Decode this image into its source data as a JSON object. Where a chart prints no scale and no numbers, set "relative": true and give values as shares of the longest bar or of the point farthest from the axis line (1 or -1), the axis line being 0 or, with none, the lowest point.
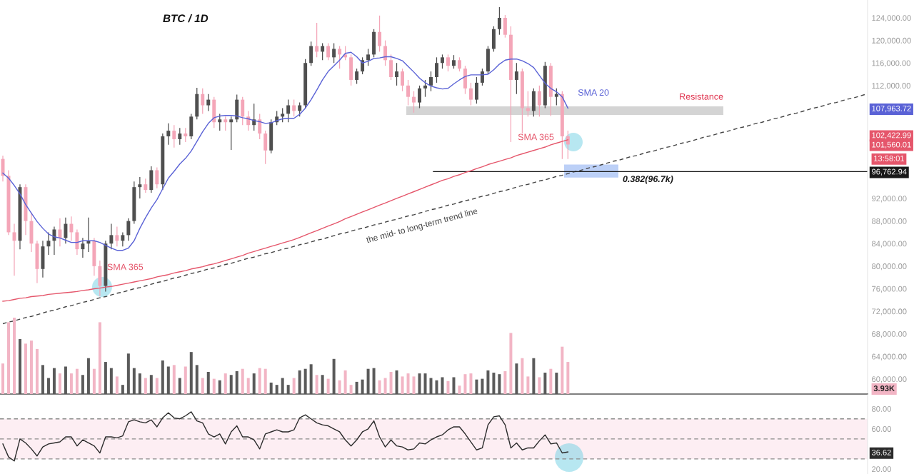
{
  "chart_data": [
    {
      "type": "candlestick",
      "title": "BTC / 1D",
      "categories": [
        null,
        null,
        null,
        null,
        null,
        null,
        null,
        null,
        null,
        null,
        null,
        null,
        null,
        null,
        null,
        null,
        null,
        null,
        null,
        null,
        null,
        null,
        null,
        null,
        null,
        null,
        null,
        null,
        null,
        null,
        null,
        null,
        null,
        null,
        null,
        null,
        null,
        null,
        null,
        null,
        null,
        null,
        null,
        null,
        null,
        null,
        null,
        null,
        null,
        null,
        null,
        null,
        null,
        null,
        null,
        null,
        null,
        null,
        null,
        null,
        null,
        null,
        null,
        null,
        null,
        null,
        null,
        null,
        null,
        null,
        null,
        null,
        null,
        null,
        null,
        null,
        null,
        null,
        null,
        null,
        null,
        null,
        null,
        null,
        null,
        null,
        null,
        null,
        null,
        null,
        null,
        null,
        null,
        null,
        null,
        null,
        null,
        null,
        null,
        null,
        null,
        null,
        null,
        null,
        null,
        null,
        null,
        null,
        null,
        null,
        null,
        null,
        null,
        null,
        null,
        null,
        null,
        null,
        null,
        null,
        null,
        null,
        null,
        null,
        null,
        null,
        null,
        null,
        null,
        null,
        null,
        null,
        null,
        null,
        null,
        null,
        null,
        null,
        null,
        null,
        null,
        null,
        null,
        null,
        null,
        null,
        null,
        null,
        null,
        null,
        null,
        null
      ],
      "ohlc": [
        [
          99000,
          99600,
          95000,
          96000
        ],
        [
          96000,
          97000,
          85500,
          86000
        ],
        [
          86000,
          87500,
          78300,
          84500
        ],
        [
          84500,
          94500,
          83000,
          94000
        ],
        [
          94000,
          94500,
          85500,
          88000
        ],
        [
          88000,
          89500,
          82500,
          84000
        ],
        [
          84000,
          84500,
          77000,
          79500
        ],
        [
          79500,
          84500,
          78000,
          83500
        ],
        [
          83500,
          86000,
          82000,
          84500
        ],
        [
          84500,
          87000,
          82000,
          86500
        ],
        [
          86500,
          88500,
          83500,
          85000
        ],
        [
          85000,
          88600,
          84000,
          87500
        ],
        [
          87500,
          88800,
          84500,
          86000
        ],
        [
          86000,
          86500,
          82000,
          83000
        ],
        [
          83000,
          85000,
          81500,
          84000
        ],
        [
          84000,
          88600,
          82500,
          84500
        ],
        [
          84500,
          85000,
          78300,
          80000
        ],
        [
          80000,
          81000,
          74700,
          76500
        ],
        [
          76500,
          84500,
          75500,
          84000
        ],
        [
          84000,
          87500,
          83000,
          85500
        ],
        [
          85500,
          87000,
          83500,
          84500
        ],
        [
          84500,
          86000,
          83500,
          85500
        ],
        [
          85500,
          88500,
          84500,
          88000
        ],
        [
          88000,
          95000,
          87500,
          94000
        ],
        [
          94000,
          95800,
          92000,
          94500
        ],
        [
          94500,
          95500,
          93000,
          93500
        ],
        [
          93500,
          97700,
          93000,
          97000
        ],
        [
          97000,
          97500,
          93800,
          94500
        ],
        [
          94500,
          103500,
          93500,
          103000
        ],
        [
          103000,
          105300,
          101500,
          104000
        ],
        [
          104000,
          105000,
          101000,
          102500
        ],
        [
          102500,
          104500,
          101500,
          103500
        ],
        [
          103500,
          104500,
          102000,
          103000
        ],
        [
          103000,
          107000,
          102500,
          106500
        ],
        [
          106500,
          111600,
          106000,
          110500
        ],
        [
          110500,
          111500,
          107000,
          108500
        ],
        [
          108500,
          110500,
          107500,
          109500
        ],
        [
          109500,
          110000,
          104500,
          105500
        ],
        [
          105500,
          107000,
          104000,
          106000
        ],
        [
          106000,
          106500,
          104000,
          105500
        ],
        [
          105500,
          106500,
          100600,
          106000
        ],
        [
          106000,
          110400,
          105500,
          109500
        ],
        [
          109500,
          110000,
          105000,
          106500
        ],
        [
          106500,
          107500,
          104000,
          105000
        ],
        [
          105000,
          108800,
          104000,
          106000
        ],
        [
          106000,
          107000,
          102500,
          103500
        ],
        [
          103500,
          104000,
          98100,
          100500
        ],
        [
          100500,
          106000,
          100000,
          105500
        ],
        [
          105500,
          107500,
          105000,
          106500
        ],
        [
          106500,
          108000,
          105500,
          107000
        ],
        [
          107000,
          109500,
          105500,
          108500
        ],
        [
          108500,
          109500,
          106500,
          107500
        ],
        [
          107500,
          109000,
          106500,
          108500
        ],
        [
          108500,
          116700,
          108000,
          116000
        ],
        [
          116000,
          119800,
          115500,
          119000
        ],
        [
          119000,
          123100,
          117000,
          118000
        ],
        [
          118000,
          119500,
          116500,
          119000
        ],
        [
          119000,
          119500,
          116500,
          117000
        ],
        [
          117000,
          119500,
          116000,
          118500
        ],
        [
          118500,
          119000,
          115000,
          117500
        ],
        [
          117500,
          119000,
          116500,
          117000
        ],
        [
          117000,
          117500,
          112000,
          113000
        ],
        [
          113000,
          115000,
          112300,
          114500
        ],
        [
          114500,
          117000,
          114000,
          116500
        ],
        [
          116500,
          118500,
          115500,
          117500
        ],
        [
          117500,
          122000,
          117000,
          121500
        ],
        [
          121500,
          124400,
          118000,
          119000
        ],
        [
          119000,
          120000,
          115500,
          116500
        ],
        [
          116500,
          117500,
          113000,
          113500
        ],
        [
          113500,
          116000,
          112000,
          114500
        ],
        [
          114500,
          115000,
          111000,
          112000
        ],
        [
          112000,
          113000,
          108500,
          110000
        ],
        [
          110000,
          111000,
          107200,
          109000
        ],
        [
          109000,
          112000,
          108000,
          111500
        ],
        [
          111500,
          113000,
          110000,
          112000
        ],
        [
          112000,
          114500,
          111000,
          113500
        ],
        [
          113500,
          117000,
          112500,
          116000
        ],
        [
          116000,
          117500,
          115000,
          117000
        ],
        [
          117000,
          117500,
          114500,
          115500
        ],
        [
          115500,
          117400,
          115000,
          116500
        ],
        [
          116500,
          117000,
          114500,
          115000
        ],
        [
          115000,
          115500,
          110500,
          111500
        ],
        [
          111500,
          112500,
          108500,
          109500
        ],
        [
          109500,
          113500,
          108800,
          112500
        ],
        [
          112500,
          115000,
          112000,
          114500
        ],
        [
          114500,
          119000,
          114000,
          118500
        ],
        [
          118500,
          122500,
          118000,
          122000
        ],
        [
          122000,
          125900,
          121000,
          124000
        ],
        [
          124000,
          124500,
          120500,
          121000
        ],
        [
          121000,
          122500,
          102000,
          113000
        ],
        [
          113000,
          116000,
          110500,
          114500
        ],
        [
          114500,
          115000,
          103500,
          108000
        ],
        [
          108000,
          111000,
          106500,
          107500
        ],
        [
          107500,
          111500,
          106500,
          111000
        ],
        [
          111000,
          112000,
          106500,
          108500
        ],
        [
          108500,
          116200,
          108000,
          115500
        ],
        [
          115500,
          116000,
          106600,
          110000
        ],
        [
          110000,
          111500,
          108500,
          110500
        ],
        [
          110500,
          111000,
          99000,
          103000
        ],
        [
          103000,
          104000,
          99000,
          101560.01
        ],
        null,
        null,
        null,
        null,
        null,
        null,
        null,
        null,
        null,
        null,
        null,
        null,
        null,
        null,
        null,
        null,
        null,
        null,
        null,
        null,
        null,
        null,
        null,
        null,
        null,
        null,
        null,
        null,
        null,
        null,
        null,
        null,
        null,
        null,
        null,
        null,
        null,
        null,
        null,
        null,
        null,
        null,
        null,
        null,
        null,
        null,
        null,
        null,
        null,
        null,
        null,
        null
      ],
      "colors": [
        "#f4a6b8",
        "#f4a6b8",
        "#f4a6b8",
        "#4f4f4f",
        "#f4a6b8",
        "#f4a6b8",
        "#f4a6b8",
        "#4f4f4f",
        "#4f4f4f",
        "#4f4f4f",
        "#f4a6b8",
        "#4f4f4f",
        "#f4a6b8",
        "#f4a6b8",
        "#4f4f4f",
        "#4f4f4f",
        "#f4a6b8",
        "#f4a6b8",
        "#4f4f4f",
        "#4f4f4f",
        "#f4a6b8",
        "#4f4f4f",
        "#4f4f4f",
        "#4f4f4f",
        "#4f4f4f",
        "#f4a6b8",
        "#4f4f4f",
        "#f4a6b8",
        "#4f4f4f",
        "#4f4f4f",
        "#f4a6b8",
        "#4f4f4f",
        "#f4a6b8",
        "#4f4f4f",
        "#4f4f4f",
        "#f4a6b8",
        "#4f4f4f",
        "#f4a6b8",
        "#4f4f4f",
        "#f4a6b8",
        "#4f4f4f",
        "#4f4f4f",
        "#f4a6b8",
        "#f4a6b8",
        "#4f4f4f",
        "#f4a6b8",
        "#f4a6b8",
        "#4f4f4f",
        "#4f4f4f",
        "#4f4f4f",
        "#4f4f4f",
        "#f4a6b8",
        "#4f4f4f",
        "#4f4f4f",
        "#4f4f4f",
        "#f4a6b8",
        "#4f4f4f",
        "#f4a6b8",
        "#4f4f4f",
        "#f4a6b8",
        "#f4a6b8",
        "#f4a6b8",
        "#4f4f4f",
        "#4f4f4f",
        "#4f4f4f",
        "#4f4f4f",
        "#f4a6b8",
        "#f4a6b8",
        "#f4a6b8",
        "#4f4f4f",
        "#f4a6b8",
        "#f4a6b8",
        "#f4a6b8",
        "#4f4f4f",
        "#4f4f4f",
        "#4f4f4f",
        "#4f4f4f",
        "#4f4f4f",
        "#f4a6b8",
        "#4f4f4f",
        "#f4a6b8",
        "#f4a6b8",
        "#f4a6b8",
        "#4f4f4f",
        "#4f4f4f",
        "#4f4f4f",
        "#4f4f4f",
        "#4f4f4f",
        "#f4a6b8",
        "#f4a6b8",
        "#4f4f4f",
        "#f4a6b8",
        "#f4a6b8",
        "#4f4f4f",
        "#f4a6b8",
        "#4f4f4f",
        "#f4a6b8",
        "#4f4f4f",
        "#f4a6b8",
        "#f4a6b8",
        null,
        null,
        null,
        null,
        null,
        null,
        null,
        null,
        null,
        null,
        null,
        null,
        null,
        null,
        null,
        null,
        null,
        null,
        null,
        null,
        null,
        null,
        null,
        null,
        null,
        null,
        null,
        null,
        null,
        null,
        null,
        null,
        null,
        null,
        null,
        null,
        null,
        null,
        null,
        null,
        null,
        null,
        null,
        null,
        null,
        null,
        null,
        null,
        null,
        null,
        null,
        null
      ],
      "series": [
        {
          "type": "line",
          "name": "SMA 20",
          "color": "#5a62d6",
          "values": [
            96500,
            95600,
            94300,
            92800,
            90900,
            89400,
            87900,
            86700,
            85700,
            85200,
            85000,
            84600,
            84200,
            84200,
            84500,
            84500,
            84500,
            84200,
            83700,
            83200,
            82800,
            82800,
            83200,
            84500,
            86700,
            88600,
            90300,
            91800,
            93700,
            95600,
            96800,
            98100,
            99100,
            100400,
            102100,
            103800,
            105300,
            106300,
            106600,
            106700,
            106700,
            106600,
            106300,
            106100,
            105800,
            105600,
            105300,
            105400,
            105800,
            106100,
            106200,
            106200,
            106900,
            108000,
            109500,
            111200,
            113000,
            114500,
            115500,
            116500,
            117700,
            117900,
            117100,
            116000,
            116300,
            116800,
            116900,
            117100,
            117100,
            116800,
            116400,
            115400,
            114400,
            113300,
            112500,
            111900,
            111600,
            111400,
            111500,
            112300,
            113000,
            113600,
            113900,
            113900,
            113900,
            114000,
            114800,
            115800,
            116500,
            116700,
            116700,
            116400,
            115900,
            115200,
            113800,
            112400,
            111500,
            110900,
            110000,
            108000,
            null,
            null,
            null,
            null,
            null,
            null,
            null,
            null,
            null,
            null,
            null,
            null,
            null,
            null,
            null,
            null,
            null,
            null,
            null,
            null,
            null,
            null,
            null,
            null,
            null,
            null,
            null,
            null,
            null,
            null,
            null,
            null,
            null,
            null,
            null,
            null,
            null,
            null,
            null,
            null,
            null,
            null,
            null,
            null,
            null,
            null,
            null,
            null,
            null,
            null,
            null,
            null
          ]
        },
        {
          "type": "line",
          "name": "SMA 365",
          "color": "#e5566b",
          "values": [
            73800,
            73900,
            74100,
            74300,
            74400,
            74600,
            74700,
            74800,
            75000,
            75100,
            75200,
            75300,
            75400,
            75500,
            75700,
            75800,
            76000,
            76100,
            76300,
            76400,
            76600,
            76800,
            77000,
            77200,
            77400,
            77600,
            77800,
            78100,
            78300,
            78500,
            78800,
            79000,
            79200,
            79500,
            79700,
            79900,
            80200,
            80400,
            80700,
            81000,
            81300,
            81600,
            81900,
            82300,
            82600,
            82900,
            83200,
            83500,
            83800,
            84100,
            84400,
            84700,
            85100,
            85500,
            85900,
            86300,
            86700,
            87100,
            87500,
            87900,
            88400,
            88800,
            89200,
            89600,
            90000,
            90400,
            90800,
            91200,
            91600,
            92000,
            92400,
            92800,
            93200,
            93600,
            94000,
            94400,
            94800,
            95200,
            95500,
            95900,
            96200,
            96600,
            96900,
            97300,
            97600,
            98000,
            98300,
            98600,
            98900,
            99200,
            99600,
            99900,
            100200,
            100500,
            100800,
            101100,
            101500,
            101800,
            102100,
            102400,
            null,
            null,
            null,
            null,
            null,
            null,
            null,
            null,
            null,
            null,
            null,
            null,
            null,
            null,
            null,
            null,
            null,
            null,
            null,
            null,
            null,
            null,
            null,
            null,
            null,
            null,
            null,
            null,
            null,
            null,
            null,
            null,
            null,
            null,
            null,
            null,
            null,
            null,
            null,
            null,
            null,
            null,
            null,
            null,
            null,
            null,
            null,
            null,
            null,
            null,
            null,
            null
          ]
        },
        {
          "type": "line",
          "name": "the mid- to long-term trend line",
          "color": "#444444",
          "line_style": "dashed",
          "values": [
            69800,
            70100,
            70300,
            70600,
            70900,
            71100,
            71400,
            71700,
            72000,
            72200,
            72500,
            72800,
            73000,
            73300,
            73600,
            73800,
            74100,
            74400,
            74600,
            74900,
            75200,
            75400,
            75700,
            76000,
            76200,
            76500,
            76800,
            77100,
            77300,
            77600,
            77900,
            78100,
            78400,
            78700,
            78900,
            79200,
            79500,
            79700,
            80000,
            80300,
            80500,
            80800,
            81100,
            81400,
            81600,
            81900,
            82200,
            82400,
            82700,
            83000,
            83200,
            83500,
            83800,
            84000,
            84300,
            84600,
            84800,
            85100,
            85400,
            85700,
            85900,
            86200,
            86500,
            86700,
            87000,
            87300,
            87500,
            87800,
            88100,
            88300,
            88600,
            88900,
            89100,
            89400,
            89700,
            90000,
            90200,
            90500,
            90800,
            91000,
            91300,
            91600,
            91800,
            92100,
            92400,
            92600,
            92900,
            93200,
            93400,
            93700,
            94000,
            94300,
            94500,
            94800,
            95100,
            95300,
            95600,
            95900,
            96100,
            96400,
            96700,
            96900,
            97200,
            97500,
            97700,
            98000,
            98300,
            98600,
            98800,
            99100,
            99400,
            99600,
            99900,
            100200,
            100400,
            100700,
            101000,
            101200,
            101500,
            101800,
            102000,
            102300,
            102600,
            102900,
            103100,
            103400,
            103700,
            103900,
            104200,
            104500,
            104700,
            105000,
            105300,
            105500,
            105800,
            106100,
            106300,
            106600,
            106900,
            107100,
            107400,
            107700,
            108000,
            108200,
            108500,
            108800,
            109000,
            109300,
            109600,
            109800,
            110100,
            110400
          ]
        }
      ],
      "ylim": [
        57340,
        127160
      ],
      "yticks": [
        {
          "value": 60000,
          "label": "60,000.00"
        },
        {
          "value": 64000,
          "label": "64,000.00"
        },
        {
          "value": 68000,
          "label": "68,000.00"
        },
        {
          "value": 72000,
          "label": "72,000.00"
        },
        {
          "value": 76000,
          "label": "76,000.00"
        },
        {
          "value": 80000,
          "label": "80,000.00"
        },
        {
          "value": 84000,
          "label": "84,000.00"
        },
        {
          "value": 88000,
          "label": "88,000.00"
        },
        {
          "value": 92000,
          "label": "92,000.00"
        },
        {
          "value": 96762.94,
          "label": "96,762.94"
        },
        {
          "value": 101560.01,
          "label": "101,560.01"
        },
        {
          "value": 102422.99,
          "label": "102,422.99"
        },
        {
          "value": 107963.72,
          "label": "107,963.72"
        },
        {
          "value": 112000,
          "label": "112,000.00"
        },
        {
          "value": 116000,
          "label": "116,000.00"
        },
        {
          "value": 120000,
          "label": "120,000.00"
        },
        {
          "value": 124000,
          "label": "124,000.00"
        }
      ],
      "bands": [
        {
          "axis": "y",
          "from": 106800,
          "to": 108300,
          "label": "Resistance",
          "color": "#d4d4d4"
        },
        {
          "axis": "y",
          "from": 95700,
          "to": 98000,
          "color": "#bcd0f7"
        }
      ],
      "ref_lines": [
        {
          "axis": "y",
          "value": 96762.94,
          "label": "0.382(96.7k)",
          "color": "#1a1a1a"
        }
      ],
      "annotations": [
        "SMA 365",
        "13:58:01"
      ],
      "tick_labels": "y"
    },
    {
      "type": "bar",
      "relative": true,
      "categories": [
        null,
        null,
        null,
        null,
        null,
        null,
        null,
        null,
        null,
        null,
        null,
        null,
        null,
        null,
        null,
        null,
        null,
        null,
        null,
        null,
        null,
        null,
        null,
        null,
        null,
        null,
        null,
        null,
        null,
        null,
        null,
        null,
        null,
        null,
        null,
        null,
        null,
        null,
        null,
        null,
        null,
        null,
        null,
        null,
        null,
        null,
        null,
        null,
        null,
        null,
        null,
        null,
        null,
        null,
        null,
        null,
        null,
        null,
        null,
        null,
        null,
        null,
        null,
        null,
        null,
        null,
        null,
        null,
        null,
        null,
        null,
        null,
        null,
        null,
        null,
        null,
        null,
        null,
        null,
        null,
        null,
        null,
        null,
        null,
        null,
        null,
        null,
        null,
        null,
        null,
        null,
        null,
        null,
        null,
        null,
        null,
        null,
        null,
        null,
        null,
        null,
        null,
        null,
        null,
        null,
        null,
        null,
        null,
        null,
        null,
        null,
        null,
        null,
        null,
        null,
        null,
        null,
        null,
        null,
        null,
        null,
        null,
        null,
        null,
        null,
        null,
        null,
        null,
        null,
        null,
        null,
        null,
        null,
        null,
        null,
        null,
        null,
        null,
        null,
        null,
        null,
        null,
        null,
        null,
        null,
        null,
        null,
        null,
        null,
        null,
        null,
        null
      ],
      "values": [
        0.4,
        0.94,
        1,
        0.72,
        0.66,
        0.7,
        0.59,
        0.38,
        0.21,
        0.34,
        0.27,
        0.36,
        0.27,
        0.33,
        0.25,
        0.47,
        0.33,
        0.94,
        0.42,
        0.34,
        0.23,
        0.12,
        0.53,
        0.34,
        0.27,
        0.21,
        0.25,
        0.21,
        0.44,
        0.36,
        0.38,
        0.21,
        0.36,
        0.55,
        0.38,
        0.21,
        0.29,
        0.2,
        0.18,
        0.27,
        0.25,
        0.3,
        0.33,
        0.21,
        0.27,
        0.34,
        0.33,
        0.15,
        0.12,
        0.21,
        0.12,
        0.21,
        0.31,
        0.33,
        0.39,
        0.25,
        0.25,
        0.2,
        0.46,
        0.18,
        0.31,
        0.12,
        0.16,
        0.19,
        0.33,
        0.34,
        0.18,
        0.21,
        0.29,
        0.31,
        0.23,
        0.27,
        0.23,
        0.27,
        0.27,
        0.21,
        0.18,
        0.22,
        0.17,
        0.22,
        0.11,
        0.26,
        0.27,
        0.19,
        0.2,
        0.31,
        0.28,
        0.26,
        0.3,
        0.8,
        0.4,
        0.47,
        0.23,
        0.47,
        0.22,
        0.28,
        0.33,
        0.28,
        0.62,
        0.42,
        null,
        null,
        null,
        null,
        null,
        null,
        null,
        null,
        null,
        null,
        null,
        null,
        null,
        null,
        null,
        null,
        null,
        null,
        null,
        null,
        null,
        null,
        null,
        null,
        null,
        null,
        null,
        null,
        null,
        null,
        null,
        null,
        null,
        null,
        null,
        null,
        null,
        null,
        null,
        null,
        null,
        null,
        null,
        null,
        null,
        null,
        null,
        null,
        null,
        null,
        null,
        null
      ],
      "colors": [
        "#f2b5c5",
        "#f2b5c5",
        "#f2b5c5",
        "#5a5a5a",
        "#f2b5c5",
        "#f2b5c5",
        "#f2b5c5",
        "#5a5a5a",
        "#5a5a5a",
        "#5a5a5a",
        "#f2b5c5",
        "#5a5a5a",
        "#f2b5c5",
        "#f2b5c5",
        "#5a5a5a",
        "#5a5a5a",
        "#f2b5c5",
        "#f2b5c5",
        "#5a5a5a",
        "#5a5a5a",
        "#f2b5c5",
        "#5a5a5a",
        "#5a5a5a",
        "#5a5a5a",
        "#5a5a5a",
        "#f2b5c5",
        "#5a5a5a",
        "#f2b5c5",
        "#5a5a5a",
        "#5a5a5a",
        "#f2b5c5",
        "#5a5a5a",
        "#f2b5c5",
        "#5a5a5a",
        "#5a5a5a",
        "#f2b5c5",
        "#5a5a5a",
        "#f2b5c5",
        "#5a5a5a",
        "#f2b5c5",
        "#5a5a5a",
        "#5a5a5a",
        "#f2b5c5",
        "#f2b5c5",
        "#5a5a5a",
        "#f2b5c5",
        "#f2b5c5",
        "#5a5a5a",
        "#5a5a5a",
        "#5a5a5a",
        "#5a5a5a",
        "#f2b5c5",
        "#5a5a5a",
        "#5a5a5a",
        "#5a5a5a",
        "#f2b5c5",
        "#5a5a5a",
        "#f2b5c5",
        "#5a5a5a",
        "#f2b5c5",
        "#f2b5c5",
        "#f2b5c5",
        "#5a5a5a",
        "#5a5a5a",
        "#5a5a5a",
        "#5a5a5a",
        "#f2b5c5",
        "#f2b5c5",
        "#f2b5c5",
        "#5a5a5a",
        "#f2b5c5",
        "#f2b5c5",
        "#f2b5c5",
        "#5a5a5a",
        "#5a5a5a",
        "#5a5a5a",
        "#5a5a5a",
        "#5a5a5a",
        "#f2b5c5",
        "#5a5a5a",
        "#f2b5c5",
        "#f2b5c5",
        "#f2b5c5",
        "#5a5a5a",
        "#5a5a5a",
        "#5a5a5a",
        "#5a5a5a",
        "#5a5a5a",
        "#f2b5c5",
        "#f2b5c5",
        "#5a5a5a",
        "#f2b5c5",
        "#f2b5c5",
        "#5a5a5a",
        "#f2b5c5",
        "#5a5a5a",
        "#f2b5c5",
        "#5a5a5a",
        "#f2b5c5",
        "#f2b5c5",
        null,
        null,
        null,
        null,
        null,
        null,
        null,
        null,
        null,
        null,
        null,
        null,
        null,
        null,
        null,
        null,
        null,
        null,
        null,
        null,
        null,
        null,
        null,
        null,
        null,
        null,
        null,
        null,
        null,
        null,
        null,
        null,
        null,
        null,
        null,
        null,
        null,
        null,
        null,
        null,
        null,
        null,
        null,
        null,
        null,
        null,
        null,
        null,
        null,
        null,
        null,
        null
      ],
      "annotations": [
        "3.93K"
      ],
      "tick_labels": false
    },
    {
      "type": "line",
      "categories": [
        null,
        null,
        null,
        null,
        null,
        null,
        null,
        null,
        null,
        null,
        null,
        null,
        null,
        null,
        null,
        null,
        null,
        null,
        null,
        null,
        null,
        null,
        null,
        null,
        null,
        null,
        null,
        null,
        null,
        null,
        null,
        null,
        null,
        null,
        null,
        null,
        null,
        null,
        null,
        null,
        null,
        null,
        null,
        null,
        null,
        null,
        null,
        null,
        null,
        null,
        null,
        null,
        null,
        null,
        null,
        null,
        null,
        null,
        null,
        null,
        null,
        null,
        null,
        null,
        null,
        null,
        null,
        null,
        null,
        null,
        null,
        null,
        null,
        null,
        null,
        null,
        null,
        null,
        null,
        null,
        null,
        null,
        null,
        null,
        null,
        null,
        null,
        null,
        null,
        null,
        null,
        null,
        null,
        null,
        null,
        null,
        null,
        null,
        null,
        null,
        null,
        null,
        null,
        null,
        null,
        null,
        null,
        null,
        null,
        null,
        null,
        null,
        null,
        null,
        null,
        null,
        null,
        null,
        null,
        null,
        null,
        null,
        null,
        null,
        null,
        null,
        null,
        null,
        null,
        null,
        null,
        null,
        null,
        null,
        null,
        null,
        null,
        null,
        null,
        null,
        null,
        null,
        null,
        null,
        null,
        null,
        null,
        null,
        null,
        null,
        null,
        null
      ],
      "series": [
        {
          "color": "#2b2b2b",
          "values": [
            45,
            32,
            28,
            50,
            46,
            40,
            33,
            42,
            45,
            46,
            47,
            52,
            52,
            43,
            49,
            46,
            43,
            36,
            52,
            52,
            51,
            53,
            67,
            69,
            67,
            66,
            69,
            62,
            71,
            76,
            71,
            70,
            73,
            77,
            68,
            66,
            55,
            52,
            55,
            45,
            57,
            63,
            52,
            52,
            49,
            40,
            55,
            57,
            59,
            57,
            57,
            59,
            71,
            74,
            70,
            66,
            64,
            63,
            60,
            57,
            49,
            43,
            49,
            57,
            60,
            68,
            52,
            42,
            49,
            43,
            42,
            39,
            40,
            46,
            45,
            49,
            52,
            54,
            59,
            62,
            62,
            55,
            47,
            39,
            41,
            64,
            72,
            73,
            64,
            41,
            46,
            39,
            41,
            41,
            48,
            54,
            45,
            46,
            36,
            37,
            null,
            null,
            null,
            null,
            null,
            null,
            null,
            null,
            null,
            null,
            null,
            null,
            null,
            null,
            null,
            null,
            null,
            null,
            null,
            null,
            null,
            null,
            null,
            null,
            null,
            null,
            null,
            null,
            null,
            null,
            null,
            null,
            null,
            null,
            null,
            null,
            null,
            null,
            null,
            null,
            null,
            null,
            null,
            null,
            null,
            null,
            null,
            null,
            null,
            null,
            null,
            null
          ]
        }
      ],
      "ylim": [
        15,
        94
      ],
      "yticks": [
        {
          "value": 20,
          "label": "20.00"
        },
        {
          "value": 36.62,
          "label": "36.62"
        },
        {
          "value": 60,
          "label": "60.00"
        },
        {
          "value": 80,
          "label": "80.00"
        }
      ],
      "ref_lines": [
        {
          "axis": "y",
          "value": 70,
          "color": "#8c8c8c",
          "line_style": "dashed"
        },
        {
          "axis": "y",
          "value": 50,
          "color": "#8c8c8c",
          "line_style": "dashed"
        },
        {
          "axis": "y",
          "value": 30,
          "color": "#8c8c8c",
          "line_style": "dashed"
        }
      ],
      "bands": [
        {
          "axis": "y",
          "from": 30,
          "to": 70,
          "color": "#fdeef3"
        }
      ],
      "tick_labels": "y"
    }
  ]
}
